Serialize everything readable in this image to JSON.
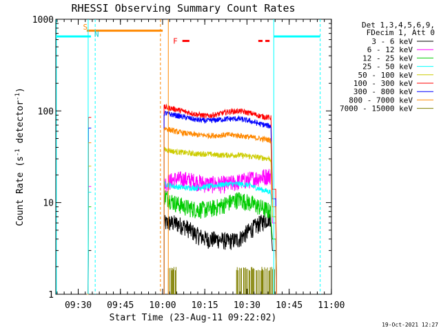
{
  "chart_data": {
    "type": "line",
    "title": "RHESSI Observing Summary Count Rates",
    "xlabel": "Start Time (23-Aug-11 09:22:02)",
    "ylabel_main": "Count Rate (s",
    "ylabel_sup1": "-1",
    "ylabel_mid": " detector",
    "ylabel_sup2": "-1",
    "ylabel_end": ")",
    "yscale": "log",
    "xlim_minutes": [
      0,
      98
    ],
    "ylim": [
      1,
      1000
    ],
    "x_ticks": [
      {
        "label": "09:30",
        "t": 7.97
      },
      {
        "label": "09:45",
        "t": 22.97
      },
      {
        "label": "10:00",
        "t": 37.97
      },
      {
        "label": "10:15",
        "t": 52.97
      },
      {
        "label": "10:30",
        "t": 67.97
      },
      {
        "label": "10:45",
        "t": 82.97
      },
      {
        "label": "11:00",
        "t": 97.97
      }
    ],
    "y_ticks": [
      {
        "label": "1",
        "v": 1
      },
      {
        "label": "10",
        "v": 10
      },
      {
        "label": "100",
        "v": 100
      },
      {
        "label": "1000",
        "v": 1000
      }
    ],
    "legend_header": [
      "Det 1,3,4,5,6,9,",
      "FDecim 1, Att 0"
    ],
    "series": [
      {
        "name": "3 - 6 keV",
        "color": "#000000",
        "seg1": [
          0,
          0,
          3,
          3
        ],
        "seg2": [
          6,
          6,
          5.5,
          4.5,
          4,
          4,
          3.8,
          4,
          5,
          6,
          7
        ],
        "seg2_end": 3
      },
      {
        "name": "6 - 12 keV",
        "color": "#ff00ff",
        "seg1": [
          0,
          0,
          15,
          15
        ],
        "seg2": [
          16,
          18,
          18,
          17,
          16,
          16,
          16,
          17,
          18,
          19,
          20
        ],
        "seg2_end": 6
      },
      {
        "name": "12 - 25 keV",
        "color": "#00cc00",
        "seg1": [
          0,
          0,
          9,
          9
        ],
        "seg2": [
          12,
          10,
          9,
          8.5,
          8.5,
          9,
          10,
          11,
          10,
          9,
          8
        ],
        "seg2_end": 4
      },
      {
        "name": "25 - 50 keV",
        "color": "#00ffff",
        "seg1": [
          0,
          0,
          13,
          13
        ],
        "seg2": [
          16,
          15,
          14.5,
          14.5,
          15,
          15.5,
          16,
          16,
          15.5,
          14,
          13
        ],
        "seg2_end": 7
      },
      {
        "name": "50 - 100 keV",
        "color": "#cccc00",
        "seg1": [
          0,
          0,
          25,
          25
        ],
        "seg2": [
          38,
          36,
          35,
          34,
          34,
          33,
          33,
          33,
          32,
          31,
          30
        ],
        "seg2_end": 7
      },
      {
        "name": "100 - 300 keV",
        "color": "#ff0000",
        "seg1": [
          0,
          0,
          85,
          85
        ],
        "seg2": [
          110,
          105,
          98,
          92,
          88,
          92,
          98,
          100,
          95,
          88,
          84
        ],
        "seg2_end": 14
      },
      {
        "name": "300 - 800 keV",
        "color": "#0000ff",
        "seg1": [
          0,
          0,
          65,
          65
        ],
        "seg2": [
          95,
          90,
          85,
          80,
          78,
          80,
          82,
          82,
          78,
          72,
          68
        ],
        "seg2_end": 11
      },
      {
        "name": "800 - 7000 keV",
        "color": "#ff8800",
        "seg1": [
          0,
          0,
          45,
          45
        ],
        "seg2": [
          65,
          60,
          57,
          55,
          54,
          54,
          55,
          54,
          52,
          50,
          48
        ],
        "seg2_end": 9
      },
      {
        "name": "7000 - 15000 keV",
        "color": "#808000",
        "seg1": [
          0,
          0,
          0,
          0
        ],
        "seg2": [
          0,
          0,
          0,
          0,
          0,
          0,
          0,
          0,
          0,
          0,
          0
        ],
        "seg2_end": 0
      }
    ],
    "orbit_day_bars": [
      {
        "t0": 0,
        "t1": 12.5,
        "v": 650
      },
      {
        "t0": 77.5,
        "t1": 94,
        "v": 650
      }
    ],
    "saa_bar": {
      "t0": 11,
      "t1": 38,
      "v": 750
    },
    "night_lines": [
      11.5,
      14,
      37.2,
      40,
      77.5,
      94
    ],
    "flare_bars": [
      {
        "t0": 45,
        "t1": 47.5,
        "v": 580
      },
      {
        "t0": 72,
        "t1": 73.5,
        "v": 580
      },
      {
        "t0": 74.5,
        "t1": 76,
        "v": 580
      }
    ],
    "annotations": [
      {
        "text": "S",
        "t": 10.5,
        "v": 830,
        "color": "#ff8800"
      },
      {
        "text": "N",
        "t": 14.5,
        "v": 690,
        "color": "#00cccc"
      },
      {
        "text": "F",
        "t": 42.5,
        "v": 580,
        "color": "#ff0000"
      }
    ],
    "grid": false,
    "legend_position": "right"
  },
  "footer": {
    "date": "19-Oct-2021 12:27"
  }
}
